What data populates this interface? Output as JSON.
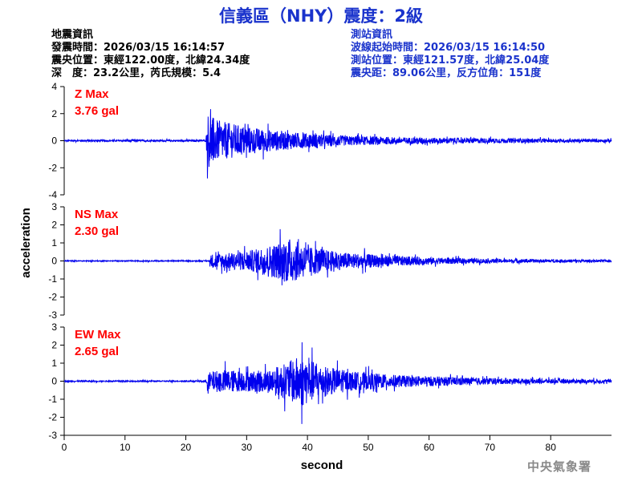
{
  "title": "信義區（NHY）震度：2級",
  "quake_info": {
    "heading": "地震資訊",
    "origin_time": "發震時間：2026/03/15 16:14:57",
    "epicenter": "震央位置：東經122.00度，北緯24.34度",
    "depth_magnitude": "深　度：23.2公里，芮氏規模：5.4"
  },
  "station_info": {
    "heading": "測站資訊",
    "wave_start": "波線起始時間：2026/03/15 16:14:50",
    "station_location": "測站位置：東經121.57度，北緯25.04度",
    "distance_azimuth": "震央距：89.06公里，反方位角：151度"
  },
  "credit": "中央氣象署",
  "colors": {
    "title": "#1a33cc",
    "trace": "#0000ee",
    "max_label": "#ff0000",
    "axis": "#000000"
  },
  "chart_data": {
    "type": "line",
    "xlabel": "second",
    "ylabel": "acceleration",
    "xlim": [
      0,
      90
    ],
    "x_ticks": [
      0,
      10,
      20,
      30,
      40,
      50,
      60,
      70,
      80
    ],
    "panels": [
      {
        "name": "Z",
        "max_label": "Z Max",
        "max_value": "3.76 gal",
        "ylim": [
          -4,
          4
        ],
        "y_ticks": [
          -4,
          -2,
          0,
          2,
          4
        ],
        "noise_amplitude": 0.12,
        "onset": 23.5,
        "envelope": [
          [
            0,
            0.12
          ],
          [
            23.3,
            0.12
          ],
          [
            23.6,
            3.76
          ],
          [
            25,
            2.8
          ],
          [
            27,
            2.4
          ],
          [
            30,
            1.9
          ],
          [
            33,
            1.5
          ],
          [
            38,
            1.1
          ],
          [
            45,
            0.7
          ],
          [
            55,
            0.45
          ],
          [
            65,
            0.35
          ],
          [
            80,
            0.25
          ],
          [
            90,
            0.2
          ]
        ]
      },
      {
        "name": "NS",
        "max_label": "NS Max",
        "max_value": "2.30 gal",
        "ylim": [
          -3,
          3
        ],
        "y_ticks": [
          -3,
          -2,
          -1,
          0,
          1,
          2,
          3
        ],
        "noise_amplitude": 0.05,
        "onset": 24,
        "envelope": [
          [
            0,
            0.05
          ],
          [
            23.8,
            0.05
          ],
          [
            24.2,
            0.7
          ],
          [
            27,
            0.8
          ],
          [
            31,
            1.1
          ],
          [
            35,
            1.8
          ],
          [
            37,
            2.3
          ],
          [
            40,
            1.5
          ],
          [
            45,
            0.9
          ],
          [
            52,
            0.6
          ],
          [
            60,
            0.35
          ],
          [
            70,
            0.22
          ],
          [
            80,
            0.15
          ],
          [
            90,
            0.12
          ]
        ]
      },
      {
        "name": "EW",
        "max_label": "EW Max",
        "max_value": "2.65 gal",
        "ylim": [
          -3,
          3
        ],
        "y_ticks": [
          -3,
          -2,
          -1,
          0,
          1,
          2,
          3
        ],
        "noise_amplitude": 0.06,
        "onset": 23.5,
        "envelope": [
          [
            0,
            0.06
          ],
          [
            23.3,
            0.06
          ],
          [
            23.7,
            0.9
          ],
          [
            26,
            1.2
          ],
          [
            30,
            1.0
          ],
          [
            33,
            1.1
          ],
          [
            36,
            1.7
          ],
          [
            39,
            2.65
          ],
          [
            42,
            1.6
          ],
          [
            47,
            1.0
          ],
          [
            55,
            0.6
          ],
          [
            65,
            0.4
          ],
          [
            75,
            0.25
          ],
          [
            90,
            0.18
          ]
        ]
      }
    ]
  }
}
